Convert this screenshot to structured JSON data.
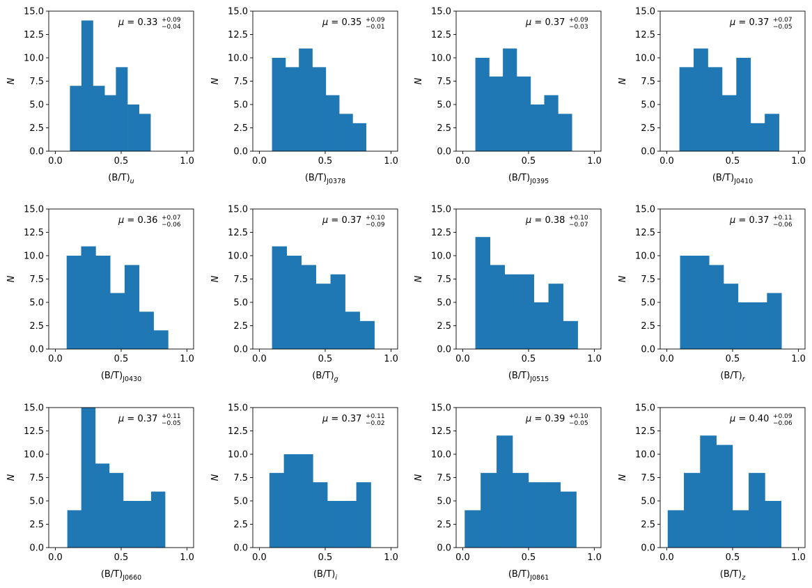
{
  "figure": {
    "bar_color": "#1f77b4",
    "axis_color": "#000000"
  },
  "chart_data": [
    {
      "type": "bar",
      "x_var": "(B/T)",
      "band": "u",
      "bin_left": [
        0.111,
        0.198,
        0.286,
        0.373,
        0.46,
        0.548,
        0.635
      ],
      "bin_width": 0.0874,
      "counts": [
        7,
        14,
        7,
        6,
        9,
        5,
        4
      ],
      "annotation": {
        "mu": "0.33",
        "plus": "+0.09",
        "minus": "−0.04"
      },
      "xlabel": {
        "base": "(B/T)",
        "sub": "u"
      },
      "ylabel": "N",
      "xlim": [
        -0.05,
        1.05
      ],
      "ylim": [
        0,
        15
      ],
      "xticks": [
        "0.0",
        "0.5",
        "1.0"
      ],
      "yticks": [
        "0.0",
        "2.5",
        "5.0",
        "7.5",
        "10.0",
        "12.5",
        "15.0"
      ]
    },
    {
      "type": "bar",
      "x_var": "(B/T)",
      "band": "J0378",
      "bin_left": [
        0.096,
        0.198,
        0.3,
        0.402,
        0.504,
        0.606,
        0.708
      ],
      "bin_width": 0.102,
      "counts": [
        10,
        9,
        11,
        9,
        6,
        4,
        3
      ],
      "annotation": {
        "mu": "0.35",
        "plus": "+0.09",
        "minus": "−0.01"
      },
      "xlabel": {
        "base": "(B/T)",
        "sub": "J0378"
      },
      "ylabel": "N",
      "xlim": [
        -0.05,
        1.05
      ],
      "ylim": [
        0,
        15
      ],
      "xticks": [
        "0.0",
        "0.5",
        "1.0"
      ],
      "yticks": [
        "0.0",
        "2.5",
        "5.0",
        "7.5",
        "10.0",
        "12.5",
        "15.0"
      ]
    },
    {
      "type": "bar",
      "x_var": "(B/T)",
      "band": "J0395",
      "bin_left": [
        0.096,
        0.2,
        0.305,
        0.41,
        0.514,
        0.619,
        0.724
      ],
      "bin_width": 0.1046,
      "counts": [
        10,
        8,
        11,
        8,
        5,
        6,
        4
      ],
      "annotation": {
        "mu": "0.37",
        "plus": "+0.09",
        "minus": "−0.03"
      },
      "xlabel": {
        "base": "(B/T)",
        "sub": "J0395"
      },
      "ylabel": "N",
      "xlim": [
        -0.05,
        1.05
      ],
      "ylim": [
        0,
        15
      ],
      "xticks": [
        "0.0",
        "0.5",
        "1.0"
      ],
      "yticks": [
        "0.0",
        "2.5",
        "5.0",
        "7.5",
        "10.0",
        "12.5",
        "15.0"
      ]
    },
    {
      "type": "bar",
      "x_var": "(B/T)",
      "band": "J0410",
      "bin_left": [
        0.096,
        0.204,
        0.312,
        0.42,
        0.528,
        0.636,
        0.744
      ],
      "bin_width": 0.108,
      "counts": [
        9,
        11,
        9,
        6,
        10,
        3,
        4
      ],
      "annotation": {
        "mu": "0.37",
        "plus": "+0.07",
        "minus": "−0.05"
      },
      "xlabel": {
        "base": "(B/T)",
        "sub": "J0410"
      },
      "ylabel": "N",
      "xlim": [
        -0.05,
        1.05
      ],
      "ylim": [
        0,
        15
      ],
      "xticks": [
        "0.0",
        "0.5",
        "1.0"
      ],
      "yticks": [
        "0.0",
        "2.5",
        "5.0",
        "7.5",
        "10.0",
        "12.5",
        "15.0"
      ]
    },
    {
      "type": "bar",
      "x_var": "(B/T)",
      "band": "J0430",
      "bin_left": [
        0.086,
        0.196,
        0.306,
        0.416,
        0.526,
        0.636,
        0.746
      ],
      "bin_width": 0.11,
      "counts": [
        10,
        11,
        10,
        6,
        9,
        4,
        2
      ],
      "annotation": {
        "mu": "0.36",
        "plus": "+0.07",
        "minus": "−0.06"
      },
      "xlabel": {
        "base": "(B/T)",
        "sub": "J0430"
      },
      "ylabel": "N",
      "xlim": [
        -0.05,
        1.05
      ],
      "ylim": [
        0,
        15
      ],
      "xticks": [
        "0.0",
        "0.5",
        "1.0"
      ],
      "yticks": [
        "0.0",
        "2.5",
        "5.0",
        "7.5",
        "10.0",
        "12.5",
        "15.0"
      ]
    },
    {
      "type": "bar",
      "x_var": "(B/T)",
      "band": "g",
      "bin_left": [
        0.096,
        0.207,
        0.318,
        0.429,
        0.54,
        0.651,
        0.762
      ],
      "bin_width": 0.111,
      "counts": [
        11,
        10,
        9,
        7,
        8,
        4,
        3
      ],
      "annotation": {
        "mu": "0.37",
        "plus": "+0.10",
        "minus": "−0.09"
      },
      "xlabel": {
        "base": "(B/T)",
        "sub": "g"
      },
      "ylabel": "N",
      "xlim": [
        -0.05,
        1.05
      ],
      "ylim": [
        0,
        15
      ],
      "xticks": [
        "0.0",
        "0.5",
        "1.0"
      ],
      "yticks": [
        "0.0",
        "2.5",
        "5.0",
        "7.5",
        "10.0",
        "12.5",
        "15.0"
      ]
    },
    {
      "type": "bar",
      "x_var": "(B/T)",
      "band": "J0515",
      "bin_left": [
        0.096,
        0.207,
        0.318,
        0.429,
        0.54,
        0.651,
        0.762
      ],
      "bin_width": 0.111,
      "counts": [
        12,
        9,
        8,
        8,
        5,
        7,
        3
      ],
      "annotation": {
        "mu": "0.38",
        "plus": "+0.10",
        "minus": "−0.07"
      },
      "xlabel": {
        "base": "(B/T)",
        "sub": "J0515"
      },
      "ylabel": "N",
      "xlim": [
        -0.05,
        1.05
      ],
      "ylim": [
        0,
        15
      ],
      "xticks": [
        "0.0",
        "0.5",
        "1.0"
      ],
      "yticks": [
        "0.0",
        "2.5",
        "5.0",
        "7.5",
        "10.0",
        "12.5",
        "15.0"
      ]
    },
    {
      "type": "bar",
      "x_var": "(B/T)",
      "band": "r",
      "bin_left": [
        0.101,
        0.211,
        0.321,
        0.431,
        0.541,
        0.651,
        0.761
      ],
      "bin_width": 0.11,
      "counts": [
        10,
        10,
        9,
        7,
        5,
        5,
        6
      ],
      "annotation": {
        "mu": "0.37",
        "plus": "+0.11",
        "minus": "−0.06"
      },
      "xlabel": {
        "base": "(B/T)",
        "sub": "r"
      },
      "ylabel": "N",
      "xlim": [
        -0.05,
        1.05
      ],
      "ylim": [
        0,
        15
      ],
      "xticks": [
        "0.0",
        "0.5",
        "1.0"
      ],
      "yticks": [
        "0.0",
        "2.5",
        "5.0",
        "7.5",
        "10.0",
        "12.5",
        "15.0"
      ]
    },
    {
      "type": "bar",
      "x_var": "(B/T)",
      "band": "J0660",
      "bin_left": [
        0.091,
        0.197,
        0.303,
        0.409,
        0.515,
        0.621,
        0.727
      ],
      "bin_width": 0.106,
      "counts": [
        4,
        15,
        9,
        8,
        5,
        5,
        6
      ],
      "annotation": {
        "mu": "0.37",
        "plus": "+0.11",
        "minus": "−0.05"
      },
      "xlabel": {
        "base": "(B/T)",
        "sub": "J0660"
      },
      "ylabel": "N",
      "xlim": [
        -0.05,
        1.05
      ],
      "ylim": [
        0,
        15
      ],
      "xticks": [
        "0.0",
        "0.5",
        "1.0"
      ],
      "yticks": [
        "0.0",
        "2.5",
        "5.0",
        "7.5",
        "10.0",
        "12.5",
        "15.0"
      ]
    },
    {
      "type": "bar",
      "x_var": "(B/T)",
      "band": "i",
      "bin_left": [
        0.076,
        0.186,
        0.296,
        0.406,
        0.516,
        0.626,
        0.736
      ],
      "bin_width": 0.11,
      "counts": [
        8,
        10,
        10,
        7,
        5,
        5,
        7
      ],
      "annotation": {
        "mu": "0.37",
        "plus": "+0.11",
        "minus": "−0.02"
      },
      "xlabel": {
        "base": "(B/T)",
        "sub": "i"
      },
      "ylabel": "N",
      "xlim": [
        -0.05,
        1.05
      ],
      "ylim": [
        0,
        15
      ],
      "xticks": [
        "0.0",
        "0.5",
        "1.0"
      ],
      "yticks": [
        "0.0",
        "2.5",
        "5.0",
        "7.5",
        "10.0",
        "12.5",
        "15.0"
      ]
    },
    {
      "type": "bar",
      "x_var": "(B/T)",
      "band": "J0861",
      "bin_left": [
        0.015,
        0.136,
        0.257,
        0.378,
        0.499,
        0.62,
        0.741
      ],
      "bin_width": 0.121,
      "counts": [
        4,
        8,
        12,
        8,
        7,
        7,
        6
      ],
      "annotation": {
        "mu": "0.39",
        "plus": "+0.10",
        "minus": "−0.05"
      },
      "xlabel": {
        "base": "(B/T)",
        "sub": "J0861"
      },
      "ylabel": "N",
      "xlim": [
        -0.05,
        1.05
      ],
      "ylim": [
        0,
        15
      ],
      "xticks": [
        "0.0",
        "0.5",
        "1.0"
      ],
      "yticks": [
        "0.0",
        "2.5",
        "5.0",
        "7.5",
        "10.0",
        "12.5",
        "15.0"
      ]
    },
    {
      "type": "bar",
      "x_var": "(B/T)",
      "band": "z",
      "bin_left": [
        0.007,
        0.13,
        0.253,
        0.376,
        0.499,
        0.622,
        0.745
      ],
      "bin_width": 0.123,
      "counts": [
        4,
        8,
        12,
        11,
        4,
        8,
        5
      ],
      "annotation": {
        "mu": "0.40",
        "plus": "+0.09",
        "minus": "−0.06"
      },
      "xlabel": {
        "base": "(B/T)",
        "sub": "z"
      },
      "ylabel": "N",
      "xlim": [
        -0.05,
        1.05
      ],
      "ylim": [
        0,
        15
      ],
      "xticks": [
        "0.0",
        "0.5",
        "1.0"
      ],
      "yticks": [
        "0.0",
        "2.5",
        "5.0",
        "7.5",
        "10.0",
        "12.5",
        "15.0"
      ]
    }
  ]
}
